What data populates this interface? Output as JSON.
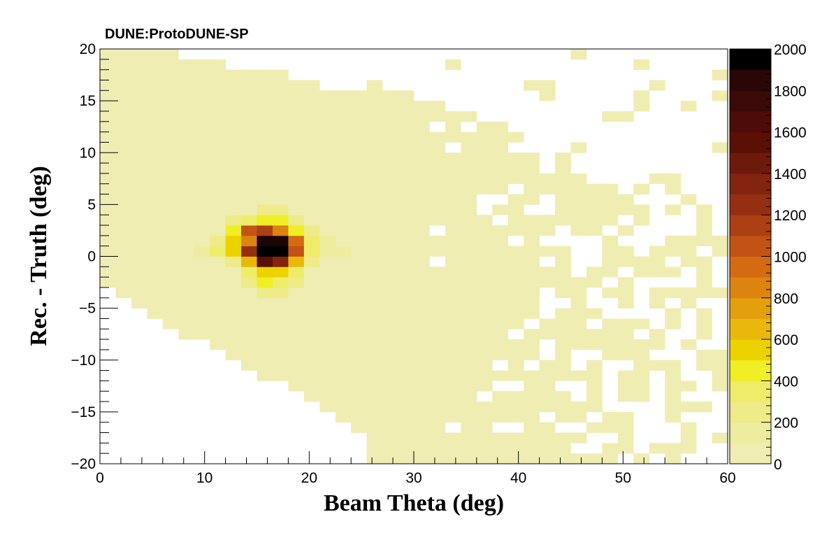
{
  "chart_data": {
    "type": "heatmap",
    "title": "DUNE:ProtoDUNE-SP",
    "xlabel": "Beam Theta (deg)",
    "ylabel": "Rec. - Truth (deg)",
    "xlim": [
      0,
      60
    ],
    "ylim": [
      -20,
      20
    ],
    "zlim": [
      0,
      2000
    ],
    "xticks": [
      0,
      10,
      20,
      30,
      40,
      50,
      60
    ],
    "yticks": [
      -20,
      -15,
      -10,
      -5,
      0,
      5,
      10,
      15,
      20
    ],
    "zticks": [
      0,
      200,
      400,
      600,
      800,
      1000,
      1200,
      1400,
      1600,
      1800,
      2000
    ],
    "x_tick_labels": [
      "0",
      "10",
      "20",
      "30",
      "40",
      "50",
      "60"
    ],
    "y_tick_labels": [
      "−20",
      "−15",
      "−10",
      "−5",
      "0",
      "5",
      "10",
      "15",
      "20"
    ],
    "z_tick_labels": [
      "0",
      "200",
      "400",
      "600",
      "800",
      "1000",
      "1200",
      "1400",
      "1600",
      "1800",
      "2000"
    ],
    "bins": {
      "x_width": 1.5,
      "y_width": 1.0
    },
    "occupied_region_description_levels": "low",
    "peak": [
      {
        "x": 15.75,
        "y": 0.5,
        "z": 2000
      },
      {
        "x": 17.25,
        "y": 0.5,
        "z": 2000
      },
      {
        "x": 15.75,
        "y": 1.5,
        "z": 1950
      },
      {
        "x": 17.25,
        "y": 1.5,
        "z": 1900
      },
      {
        "x": 15.75,
        "y": -0.5,
        "z": 1500
      },
      {
        "x": 17.25,
        "y": -0.5,
        "z": 1300
      },
      {
        "x": 14.25,
        "y": 0.5,
        "z": 1200
      },
      {
        "x": 18.75,
        "y": 0.5,
        "z": 1000
      },
      {
        "x": 14.25,
        "y": 2.5,
        "z": 1050
      },
      {
        "x": 15.75,
        "y": 2.5,
        "z": 1150
      },
      {
        "x": 17.25,
        "y": 2.5,
        "z": 800
      },
      {
        "x": 18.75,
        "y": 1.5,
        "z": 900
      },
      {
        "x": 14.25,
        "y": 1.5,
        "z": 850
      },
      {
        "x": 14.25,
        "y": -0.5,
        "z": 650
      },
      {
        "x": 18.75,
        "y": -0.5,
        "z": 600
      },
      {
        "x": 15.75,
        "y": -1.5,
        "z": 550
      },
      {
        "x": 17.25,
        "y": -1.5,
        "z": 500
      },
      {
        "x": 12.75,
        "y": 1.5,
        "z": 550
      },
      {
        "x": 12.75,
        "y": 2.5,
        "z": 450
      },
      {
        "x": 12.75,
        "y": 0.5,
        "z": 500
      },
      {
        "x": 18.75,
        "y": 2.5,
        "z": 450
      },
      {
        "x": 20.25,
        "y": 0.5,
        "z": 350
      },
      {
        "x": 20.25,
        "y": 1.5,
        "z": 300
      },
      {
        "x": 14.25,
        "y": -1.5,
        "z": 380
      },
      {
        "x": 18.75,
        "y": -1.5,
        "z": 350
      },
      {
        "x": 15.75,
        "y": 3.5,
        "z": 400
      },
      {
        "x": 17.25,
        "y": 3.5,
        "z": 400
      },
      {
        "x": 15.75,
        "y": -2.5,
        "z": 420
      },
      {
        "x": 17.25,
        "y": -2.5,
        "z": 380
      },
      {
        "x": 14.25,
        "y": 3.5,
        "z": 300
      },
      {
        "x": 11.25,
        "y": 0.5,
        "z": 300
      },
      {
        "x": 11.25,
        "y": 1.5,
        "z": 280
      },
      {
        "x": 12.75,
        "y": -0.5,
        "z": 260
      },
      {
        "x": 20.25,
        "y": -0.5,
        "z": 250
      },
      {
        "x": 14.25,
        "y": -2.5,
        "z": 250
      },
      {
        "x": 18.75,
        "y": -2.5,
        "z": 220
      },
      {
        "x": 20.25,
        "y": 2.5,
        "z": 220
      },
      {
        "x": 12.75,
        "y": 3.5,
        "z": 200
      },
      {
        "x": 18.75,
        "y": 3.5,
        "z": 200
      },
      {
        "x": 15.75,
        "y": 4.5,
        "z": 230
      },
      {
        "x": 17.25,
        "y": 4.5,
        "z": 200
      },
      {
        "x": 15.75,
        "y": -3.5,
        "z": 240
      },
      {
        "x": 17.25,
        "y": -3.5,
        "z": 220
      },
      {
        "x": 21.75,
        "y": 0.5,
        "z": 180
      },
      {
        "x": 21.75,
        "y": 1.5,
        "z": 160
      },
      {
        "x": 9.75,
        "y": 0.5,
        "z": 150
      },
      {
        "x": 23.25,
        "y": 0.5,
        "z": 140
      }
    ]
  }
}
